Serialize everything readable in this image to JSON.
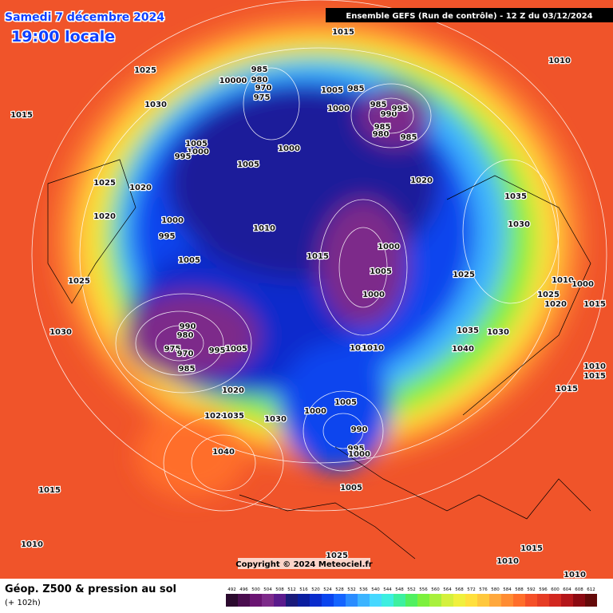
{
  "header": {
    "date": "Samedi 7 décembre 2024",
    "time": "19:00 locale",
    "banner": "Ensemble GEFS  (Run de contrôle)  -  12 Z du 03/12/2024",
    "copyright": "Copyright © 2024 Meteociel.fr"
  },
  "footer": {
    "title": "Géop. Z500 & pression au sol",
    "subtitle": "(+ 102h)"
  },
  "legend": {
    "labels": [
      492,
      496,
      500,
      504,
      508,
      512,
      516,
      520,
      524,
      528,
      532,
      536,
      540,
      544,
      548,
      552,
      556,
      560,
      564,
      568,
      572,
      576,
      580,
      584,
      588,
      592,
      596,
      600,
      604,
      608,
      612
    ],
    "colors": [
      "#2b0a2e",
      "#4a0d4f",
      "#6a1472",
      "#7d2a8a",
      "#5a1a8c",
      "#1a1a7a",
      "#0a1ea0",
      "#0a2ccc",
      "#0a44ee",
      "#1464ff",
      "#2a8cff",
      "#3cb4ff",
      "#46d8ff",
      "#3ceee0",
      "#3cf0a0",
      "#50f060",
      "#7cf03c",
      "#a8f03c",
      "#d4f03c",
      "#f0f03c",
      "#ffe03c",
      "#ffc83c",
      "#ffa83c",
      "#ff8c32",
      "#ff6e2a",
      "#f55028",
      "#e63c24",
      "#d22820",
      "#b4161a",
      "#8c0a12",
      "#640a0a"
    ]
  },
  "isobar_labels": [
    1015,
    1025,
    1030,
    1015,
    985,
    10000,
    980,
    970,
    975,
    1005,
    985,
    1000,
    985,
    990,
    995,
    985,
    980,
    985,
    1010,
    1005,
    1000,
    995,
    1000,
    1005,
    1020,
    1025,
    1020,
    1035,
    1020,
    1000,
    995,
    1010,
    1030,
    1000,
    1015,
    1005,
    1005,
    1025,
    1025,
    1010,
    1000,
    1000,
    1025,
    1020,
    1015,
    990,
    980,
    1035,
    1030,
    1030,
    975,
    970,
    995,
    1005,
    1010,
    1010,
    1040,
    985,
    1010,
    1015,
    1020,
    1015,
    1005,
    1000,
    1020,
    1035,
    1030,
    990,
    995,
    1000,
    1040,
    1005,
    1015,
    1010,
    1015,
    1025,
    1010,
    1010
  ]
}
